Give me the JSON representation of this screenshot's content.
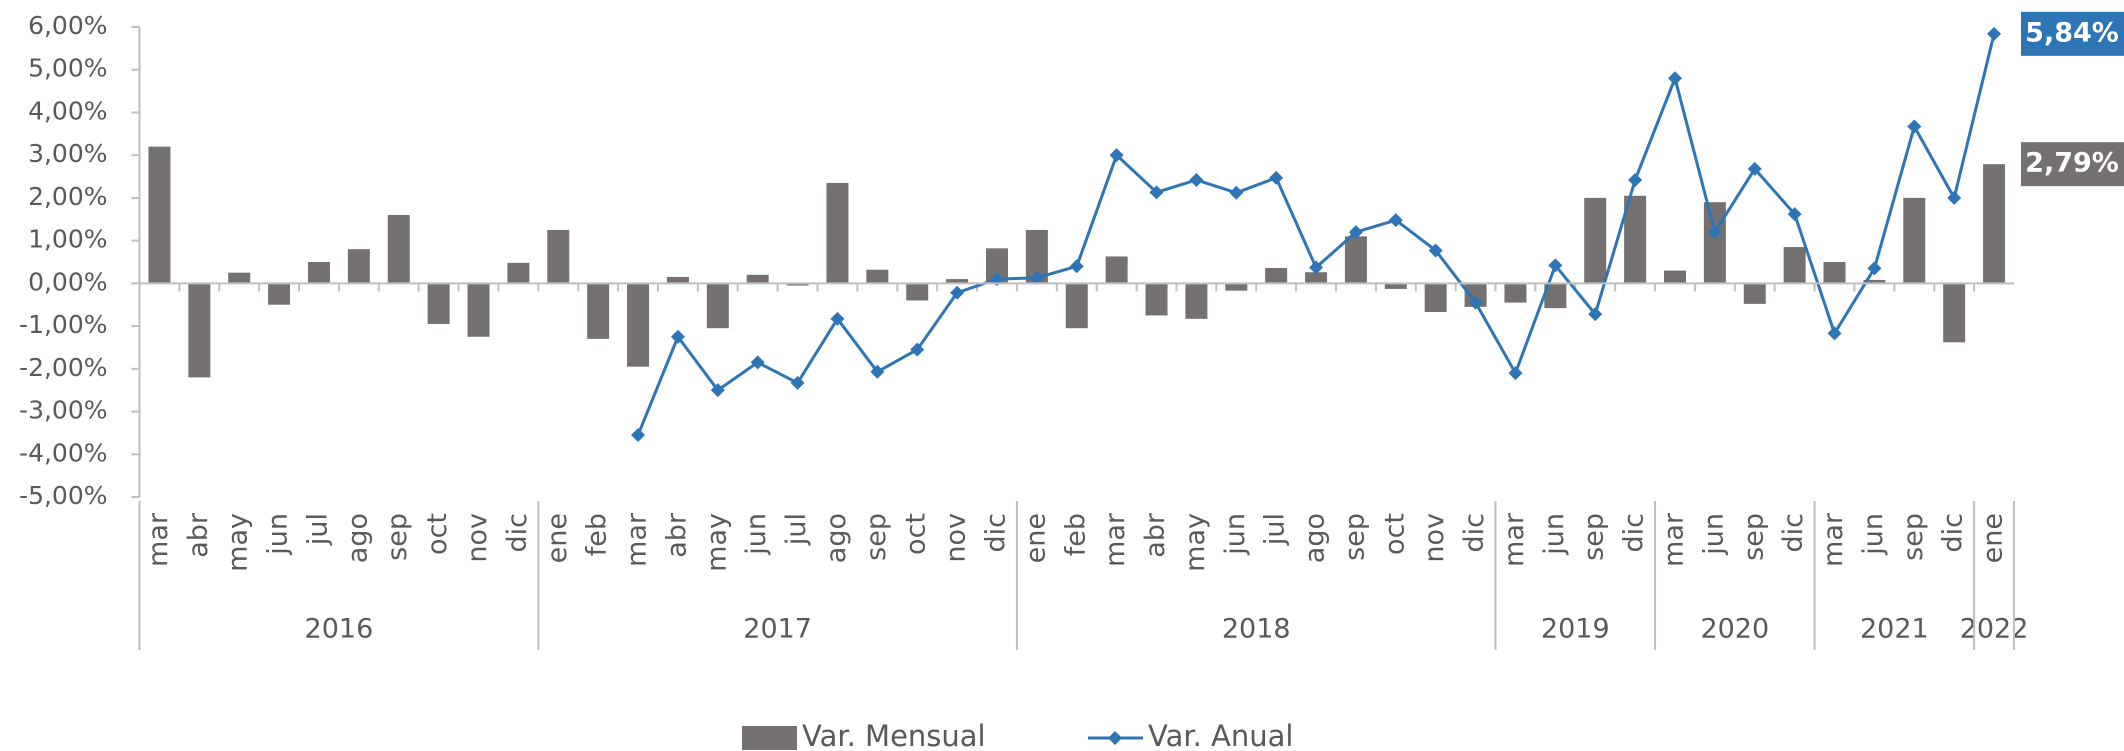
{
  "chart_data": {
    "type": "bar_line",
    "groups": [
      {
        "year": "2016",
        "months": [
          "mar",
          "abr",
          "may",
          "jun",
          "jul",
          "ago",
          "sep",
          "oct",
          "nov",
          "dic"
        ]
      },
      {
        "year": "2017",
        "months": [
          "ene",
          "feb",
          "mar",
          "abr",
          "may",
          "jun",
          "jul",
          "ago",
          "sep",
          "oct",
          "nov",
          "dic"
        ]
      },
      {
        "year": "2018",
        "months": [
          "ene",
          "feb",
          "mar",
          "abr",
          "may",
          "jun",
          "jul",
          "ago",
          "sep",
          "oct",
          "nov",
          "dic"
        ]
      },
      {
        "year": "2019",
        "months": [
          "mar",
          "jun",
          "sep",
          "dic"
        ]
      },
      {
        "year": "2020",
        "months": [
          "mar",
          "jun",
          "sep",
          "dic"
        ]
      },
      {
        "year": "2021",
        "months": [
          "mar",
          "jun",
          "sep",
          "dic"
        ]
      },
      {
        "year": "2022",
        "months": [
          "ene"
        ]
      }
    ],
    "series": [
      {
        "name": "Var. Mensual",
        "type": "bar",
        "color": "#767171",
        "values": [
          3.2,
          -2.2,
          0.25,
          -0.5,
          0.5,
          0.8,
          1.6,
          -0.95,
          -1.25,
          0.48,
          1.25,
          -1.3,
          -1.95,
          0.15,
          -1.05,
          0.2,
          -0.05,
          2.35,
          0.32,
          -0.4,
          0.1,
          0.82,
          1.25,
          -1.05,
          0.63,
          -0.75,
          -0.83,
          -0.17,
          0.36,
          0.26,
          1.1,
          -0.13,
          -0.67,
          -0.55,
          -0.45,
          -0.58,
          2.0,
          2.05,
          0.3,
          1.9,
          -0.48,
          0.85,
          0.5,
          0.08,
          2.0,
          -1.38,
          2.79
        ],
        "value_labels": [
          null,
          null,
          null,
          null,
          null,
          null,
          null,
          null,
          null,
          null,
          null,
          null,
          null,
          null,
          null,
          null,
          null,
          null,
          null,
          null,
          null,
          null,
          null,
          null,
          null,
          null,
          null,
          null,
          null,
          null,
          null,
          null,
          null,
          null,
          null,
          null,
          null,
          null,
          null,
          null,
          null,
          null,
          null,
          null,
          null,
          null,
          "2,79%"
        ]
      },
      {
        "name": "Var. Anual",
        "type": "line",
        "color": "#2e75b6",
        "values": [
          null,
          null,
          null,
          null,
          null,
          null,
          null,
          null,
          null,
          null,
          null,
          null,
          -3.55,
          -1.25,
          -2.5,
          -1.85,
          -2.33,
          -0.83,
          -2.07,
          -1.55,
          -0.22,
          0.1,
          0.13,
          0.4,
          3.0,
          2.13,
          2.42,
          2.12,
          2.47,
          0.37,
          1.2,
          1.48,
          0.77,
          -0.45,
          -2.1,
          0.42,
          -0.72,
          2.42,
          4.8,
          1.2,
          2.68,
          1.62,
          -1.17,
          0.35,
          3.67,
          2.0,
          5.84
        ],
        "value_labels": [
          null,
          null,
          null,
          null,
          null,
          null,
          null,
          null,
          null,
          null,
          null,
          null,
          null,
          null,
          null,
          null,
          null,
          null,
          null,
          null,
          null,
          null,
          null,
          null,
          null,
          null,
          null,
          null,
          null,
          null,
          null,
          null,
          null,
          null,
          null,
          null,
          null,
          null,
          null,
          null,
          null,
          null,
          null,
          null,
          null,
          null,
          "5,84%"
        ]
      }
    ],
    "ylim": [
      -5,
      6
    ],
    "yticks": [
      {
        "value": 6,
        "label": "6,00%"
      },
      {
        "value": 5,
        "label": "5,00%"
      },
      {
        "value": 4,
        "label": "4,00%"
      },
      {
        "value": 3,
        "label": "3,00%"
      },
      {
        "value": 2,
        "label": "2,00%"
      },
      {
        "value": 1,
        "label": "1,00%"
      },
      {
        "value": 0,
        "label": "0,00%"
      },
      {
        "value": -1,
        "label": "-1,00%"
      },
      {
        "value": -2,
        "label": "-2,00%"
      },
      {
        "value": -3,
        "label": "-3,00%"
      },
      {
        "value": -4,
        "label": "-4,00%"
      },
      {
        "value": -5,
        "label": "-5,00%"
      }
    ],
    "grid": false,
    "legend": "bottom"
  }
}
